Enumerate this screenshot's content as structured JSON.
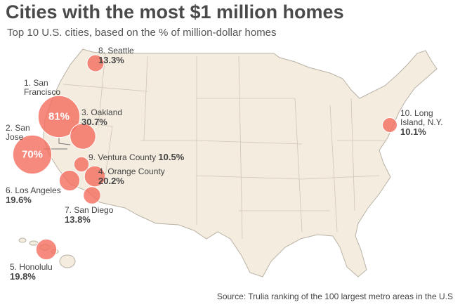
{
  "title": "Cities with the most $1 million homes",
  "subtitle": "Top 10 U.S. cities, based on the % of million-dollar homes",
  "source": "Source: Trulia ranking of the 100 largest metro areas in the U.S",
  "cities": [
    {
      "name": "1. San Francisco",
      "value": 81,
      "value_label": "81%"
    },
    {
      "name": "2. San Jose",
      "value": 70,
      "value_label": "70%"
    },
    {
      "name": "3. Oakland",
      "value": 30.7,
      "value_label": "30.7%"
    },
    {
      "name": "4. Orange County",
      "value": 20.2,
      "value_label": "20.2%"
    },
    {
      "name": "5. Honolulu",
      "value": 19.8,
      "value_label": "19.8%"
    },
    {
      "name": "6. Los Angeles",
      "value": 19.6,
      "value_label": "19.6%"
    },
    {
      "name": "7. San Diego",
      "value": 13.8,
      "value_label": "13.8%"
    },
    {
      "name": "8. Seattle",
      "value": 13.3,
      "value_label": "13.3%"
    },
    {
      "name": "9. Ventura County",
      "value": 10.5,
      "value_label": "10.5%"
    },
    {
      "name": "10. Long Island, N.Y.",
      "value": 10.1,
      "value_label": "10.1%"
    }
  ]
}
